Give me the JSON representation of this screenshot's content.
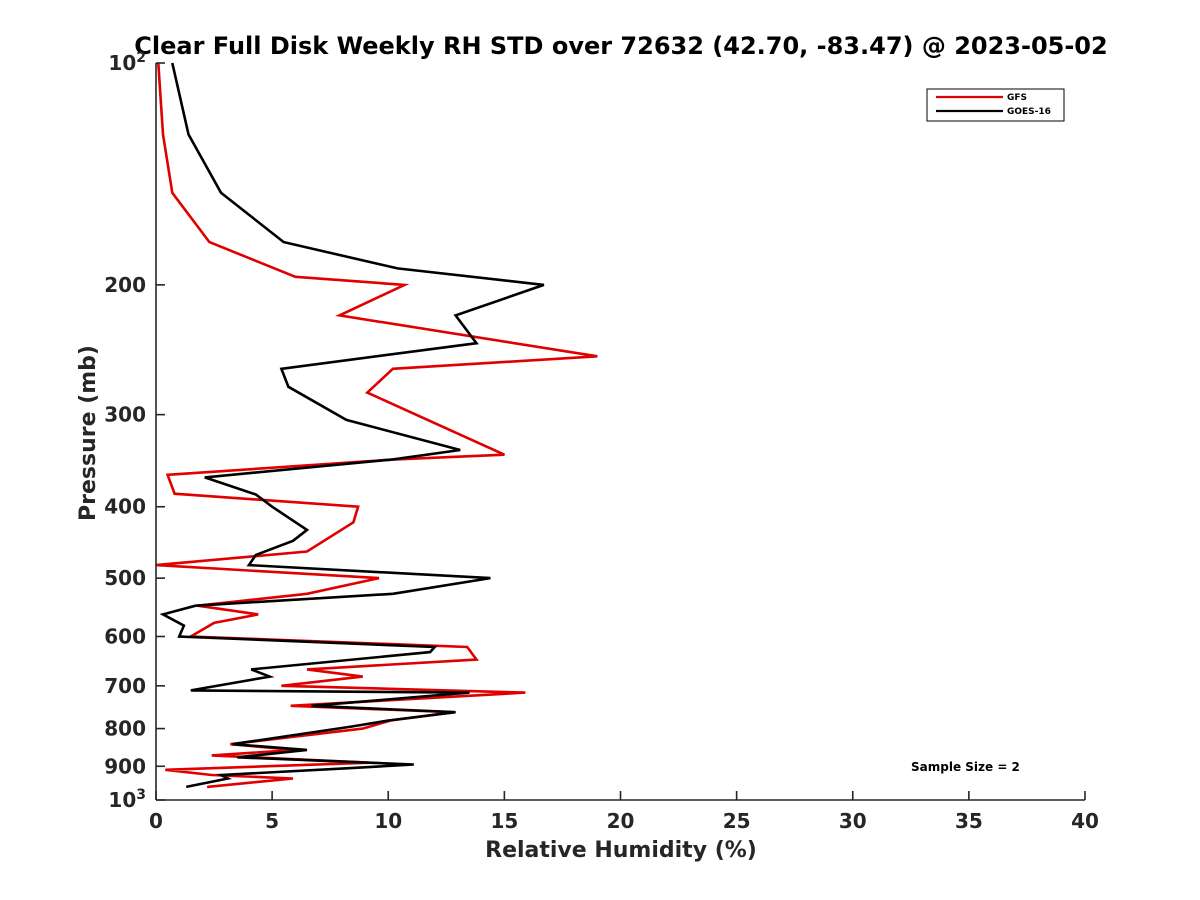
{
  "chart_data": {
    "type": "line",
    "title": "Clear Full Disk Weekly RH STD over 72632 (42.70, -83.47) @ 2023-05-02",
    "xlabel": "Relative Humidity (%)",
    "ylabel": "Pressure (mb)",
    "xlim": [
      0,
      40
    ],
    "ylim": [
      100,
      1000
    ],
    "y_scale": "log",
    "y_reversed": true,
    "grid": false,
    "legend_position": "top-right",
    "x_ticks": [
      0,
      5,
      10,
      15,
      20,
      25,
      30,
      35,
      40
    ],
    "x_tick_labels": [
      "0",
      "5",
      "10",
      "15",
      "20",
      "25",
      "30",
      "35",
      "40"
    ],
    "y_ticks": [
      100,
      200,
      300,
      400,
      500,
      600,
      700,
      800,
      900,
      1000
    ],
    "y_tick_labels": [
      {
        "base": "10",
        "exp": "2"
      },
      {
        "base": "200",
        "exp": ""
      },
      {
        "base": "300",
        "exp": ""
      },
      {
        "base": "400",
        "exp": ""
      },
      {
        "base": "500",
        "exp": ""
      },
      {
        "base": "600",
        "exp": ""
      },
      {
        "base": "700",
        "exp": ""
      },
      {
        "base": "800",
        "exp": ""
      },
      {
        "base": "900",
        "exp": ""
      },
      {
        "base": "10",
        "exp": "3"
      }
    ],
    "annotation": "Sample Size = 2",
    "series": [
      {
        "name": "GFS",
        "color": "#e00000",
        "points": [
          [
            0.1,
            100
          ],
          [
            0.3,
            125
          ],
          [
            0.7,
            150
          ],
          [
            2.3,
            175
          ],
          [
            6.0,
            195
          ],
          [
            10.7,
            200
          ],
          [
            7.9,
            220
          ],
          [
            19.0,
            250
          ],
          [
            10.2,
            260
          ],
          [
            9.1,
            280
          ],
          [
            15.0,
            340
          ],
          [
            10.3,
            345
          ],
          [
            0.5,
            362
          ],
          [
            0.8,
            384
          ],
          [
            8.7,
            400
          ],
          [
            8.5,
            420
          ],
          [
            6.5,
            460
          ],
          [
            0.0,
            480
          ],
          [
            9.6,
            500
          ],
          [
            6.5,
            525
          ],
          [
            1.8,
            545
          ],
          [
            4.4,
            560
          ],
          [
            2.5,
            575
          ],
          [
            1.5,
            600
          ],
          [
            13.4,
            620
          ],
          [
            13.8,
            645
          ],
          [
            6.5,
            665
          ],
          [
            8.9,
            680
          ],
          [
            5.4,
            700
          ],
          [
            15.9,
            715
          ],
          [
            5.8,
            745
          ],
          [
            12.8,
            760
          ],
          [
            10.1,
            780
          ],
          [
            8.9,
            800
          ],
          [
            3.2,
            840
          ],
          [
            6.0,
            855
          ],
          [
            2.4,
            870
          ],
          [
            9.2,
            890
          ],
          [
            0.4,
            910
          ],
          [
            2.4,
            925
          ],
          [
            5.9,
            935
          ],
          [
            2.2,
            960
          ]
        ]
      },
      {
        "name": "GOES-16",
        "color": "#000000",
        "points": [
          [
            0.7,
            100
          ],
          [
            1.4,
            125
          ],
          [
            2.8,
            150
          ],
          [
            5.5,
            175
          ],
          [
            10.4,
            190
          ],
          [
            16.7,
            200
          ],
          [
            12.9,
            220
          ],
          [
            13.8,
            240
          ],
          [
            5.4,
            260
          ],
          [
            5.7,
            275
          ],
          [
            8.2,
            305
          ],
          [
            13.1,
            335
          ],
          [
            10.2,
            345
          ],
          [
            2.1,
            365
          ],
          [
            4.3,
            385
          ],
          [
            5.0,
            400
          ],
          [
            6.5,
            430
          ],
          [
            5.9,
            445
          ],
          [
            4.3,
            465
          ],
          [
            4.0,
            480
          ],
          [
            14.4,
            500
          ],
          [
            10.2,
            525
          ],
          [
            1.7,
            545
          ],
          [
            0.3,
            560
          ],
          [
            1.2,
            580
          ],
          [
            1.0,
            600
          ],
          [
            12.0,
            620
          ],
          [
            11.8,
            630
          ],
          [
            4.1,
            665
          ],
          [
            4.9,
            680
          ],
          [
            1.5,
            710
          ],
          [
            13.5,
            715
          ],
          [
            6.7,
            745
          ],
          [
            12.9,
            760
          ],
          [
            10.0,
            780
          ],
          [
            8.4,
            795
          ],
          [
            3.3,
            840
          ],
          [
            6.5,
            855
          ],
          [
            3.5,
            875
          ],
          [
            11.1,
            895
          ],
          [
            8.4,
            905
          ],
          [
            2.8,
            925
          ],
          [
            3.1,
            935
          ],
          [
            1.3,
            960
          ]
        ]
      }
    ]
  }
}
